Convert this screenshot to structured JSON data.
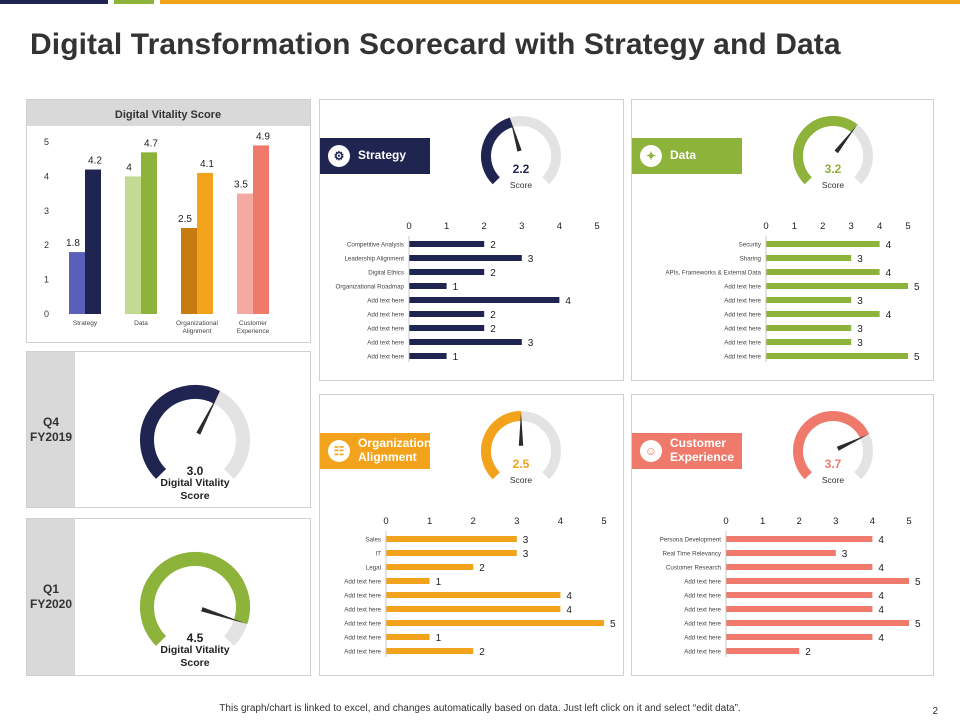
{
  "title": "Digital Transformation Scorecard with Strategy and Data",
  "footer": "This graph/chart is linked to excel, and changes automatically based on data. Just left click on it and select “edit data”.",
  "page_number": "2",
  "colors": {
    "navy": "#1f2451",
    "green": "#8db33a",
    "orange": "#f2a31b",
    "salmon": "#ef7a6c"
  },
  "quarters": [
    {
      "label_line1": "Q4",
      "label_line2": "FY2019",
      "value": "3.0",
      "fraction": 0.6,
      "caption_line1": "Digital Vitality",
      "caption_line2": "Score",
      "color": "#1f2451"
    },
    {
      "label_line1": "Q1",
      "label_line2": "FY2020",
      "value": "4.5",
      "fraction": 0.9,
      "caption_line1": "Digital Vitality",
      "caption_line2": "Score",
      "color": "#8db33a"
    }
  ],
  "chart_data": [
    {
      "type": "bar",
      "title": "Digital Vitality Score",
      "categories": [
        "Strategy",
        "Data",
        "Organizational Alignment",
        "Customer Experience"
      ],
      "category_lines": [
        [
          "Strategy"
        ],
        [
          "Data"
        ],
        [
          "Organizational",
          "Alignment"
        ],
        [
          "Customer",
          "Experience"
        ]
      ],
      "series": [
        {
          "values": [
            1.8,
            4,
            2.5,
            3.5
          ],
          "colors": [
            "#5a5fb8",
            "#c4da93",
            "#c77c10",
            "#f4aaa2"
          ]
        },
        {
          "values": [
            4.2,
            4.7,
            4.1,
            4.9
          ],
          "colors": [
            "#1f2451",
            "#8db33a",
            "#f2a31b",
            "#ef7a6c"
          ]
        }
      ],
      "ylim": [
        0,
        5
      ],
      "yticks": [
        0,
        1,
        2,
        3,
        4,
        5
      ]
    },
    {
      "type": "bar",
      "title": "Strategy",
      "gauge_value": "2.2",
      "gauge_fraction": 0.44,
      "gauge_label": "Score",
      "color": "#1f2451",
      "categories": [
        "Competitive Analysis",
        "Leadership Alignment",
        "Digital Ethics",
        "Organizational Roadmap",
        "Add text here",
        "Add text here",
        "Add text here",
        "Add text here",
        "Add text here"
      ],
      "values": [
        2,
        3,
        2,
        1,
        4,
        2,
        2,
        3,
        1
      ],
      "xlim": [
        0,
        5
      ],
      "xticks": [
        0,
        1,
        2,
        3,
        4,
        5
      ]
    },
    {
      "type": "bar",
      "title": "Data",
      "gauge_value": "3.2",
      "gauge_fraction": 0.64,
      "gauge_label": "Score",
      "color": "#8db33a",
      "categories": [
        "Security",
        "Sharing",
        "APIs, Frameworks & External Data",
        "Add text here",
        "Add text here",
        "Add text here",
        "Add text here",
        "Add text here",
        "Add text here"
      ],
      "values": [
        4,
        3,
        4,
        5,
        3,
        4,
        3,
        3,
        5
      ],
      "xlim": [
        0,
        5
      ],
      "xticks": [
        0,
        1,
        2,
        3,
        4,
        5
      ]
    },
    {
      "type": "bar",
      "title": "Organizational Alignment",
      "title_lines": [
        "Organizational",
        "Alignment"
      ],
      "gauge_value": "2.5",
      "gauge_fraction": 0.5,
      "gauge_label": "Score",
      "color": "#f2a31b",
      "categories": [
        "Sales",
        "IT",
        "Legal",
        "Add text here",
        "Add text here",
        "Add text here",
        "Add text here",
        "Add text here",
        "Add text here"
      ],
      "values": [
        3,
        3,
        2,
        1,
        4,
        4,
        5,
        1,
        2
      ],
      "xlim": [
        0,
        5
      ],
      "xticks": [
        0,
        1,
        2,
        3,
        4,
        5
      ]
    },
    {
      "type": "bar",
      "title": "Customer Experience",
      "title_lines": [
        "Customer",
        "Experience"
      ],
      "gauge_value": "3.7",
      "gauge_fraction": 0.74,
      "gauge_label": "Score",
      "color": "#ef7a6c",
      "categories": [
        "Persona Development",
        "Real Time Relevancy",
        "Customer Research",
        "Add text here",
        "Add text here",
        "Add text here",
        "Add text here",
        "Add text here",
        "Add text here"
      ],
      "values": [
        4,
        3,
        4,
        5,
        4,
        4,
        5,
        4,
        2
      ],
      "xlim": [
        0,
        5
      ],
      "xticks": [
        0,
        1,
        2,
        3,
        4,
        5
      ]
    }
  ]
}
